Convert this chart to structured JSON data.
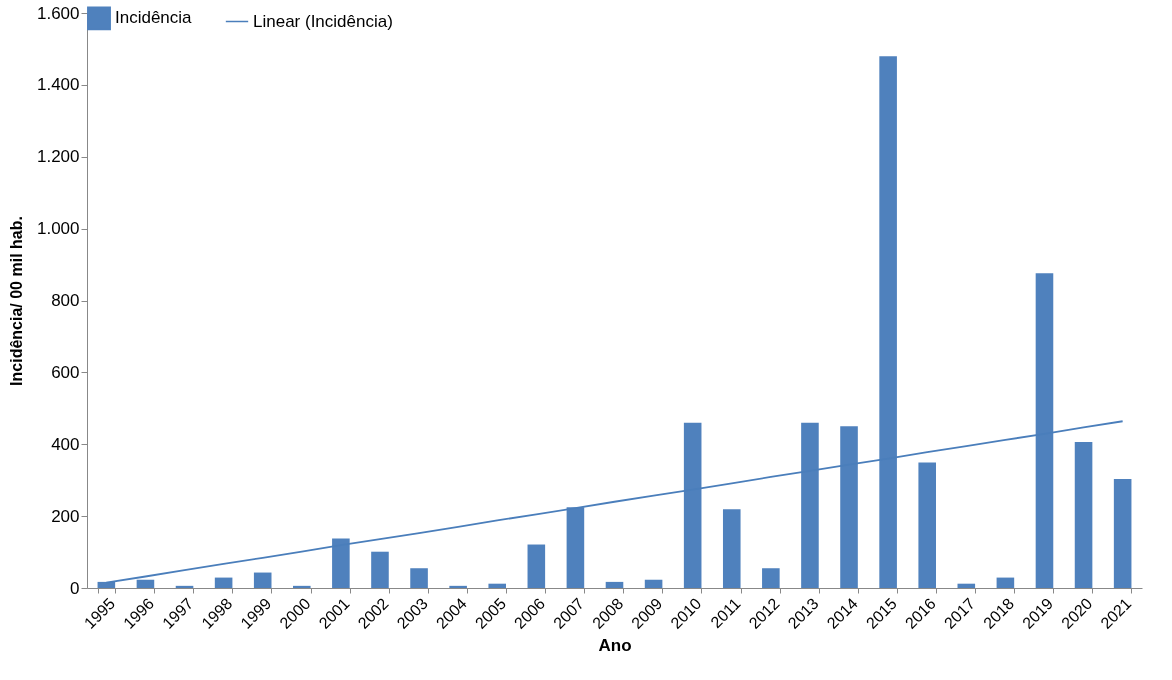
{
  "chart_data": {
    "type": "bar",
    "xlabel": "Ano",
    "ylabel": "Incidência/ 00 mil hab.",
    "categories": [
      "1995",
      "1996",
      "1997",
      "1998",
      "1999",
      "2000",
      "2001",
      "2002",
      "2003",
      "2004",
      "2005",
      "2006",
      "2007",
      "2008",
      "2009",
      "2010",
      "2011",
      "2012",
      "2013",
      "2014",
      "2015",
      "2016",
      "2017",
      "2018",
      "2019",
      "2020",
      "2021"
    ],
    "series": [
      {
        "name": "Incidência",
        "color": "#4f81bd",
        "values": [
          17,
          23,
          6,
          29,
          43,
          6,
          138,
          101,
          55,
          6,
          12,
          121,
          225,
          17,
          23,
          460,
          219,
          55,
          460,
          450,
          1480,
          349,
          12,
          29,
          876,
          406,
          303
        ]
      },
      {
        "name": "Linear (Incidência)",
        "type": "line",
        "color": "#4a7ebb",
        "values": [
          15,
          32,
          50,
          67,
          84,
          101,
          119,
          136,
          153,
          170,
          188,
          205,
          222,
          240,
          257,
          274,
          291,
          309,
          326,
          343,
          360,
          378,
          395,
          412,
          429,
          447,
          464
        ]
      }
    ],
    "ylim": [
      0,
      1600
    ],
    "yticks": [
      0,
      200,
      400,
      600,
      800,
      {
        "value": 1000,
        "label": "1.000"
      },
      {
        "value": 1200,
        "label": "1.200"
      },
      {
        "value": 1400,
        "label": "1.400"
      },
      {
        "value": 1600,
        "label": "1.600"
      }
    ],
    "grid": false,
    "legend": "top",
    "marker": "none",
    "line_style": "solid"
  }
}
